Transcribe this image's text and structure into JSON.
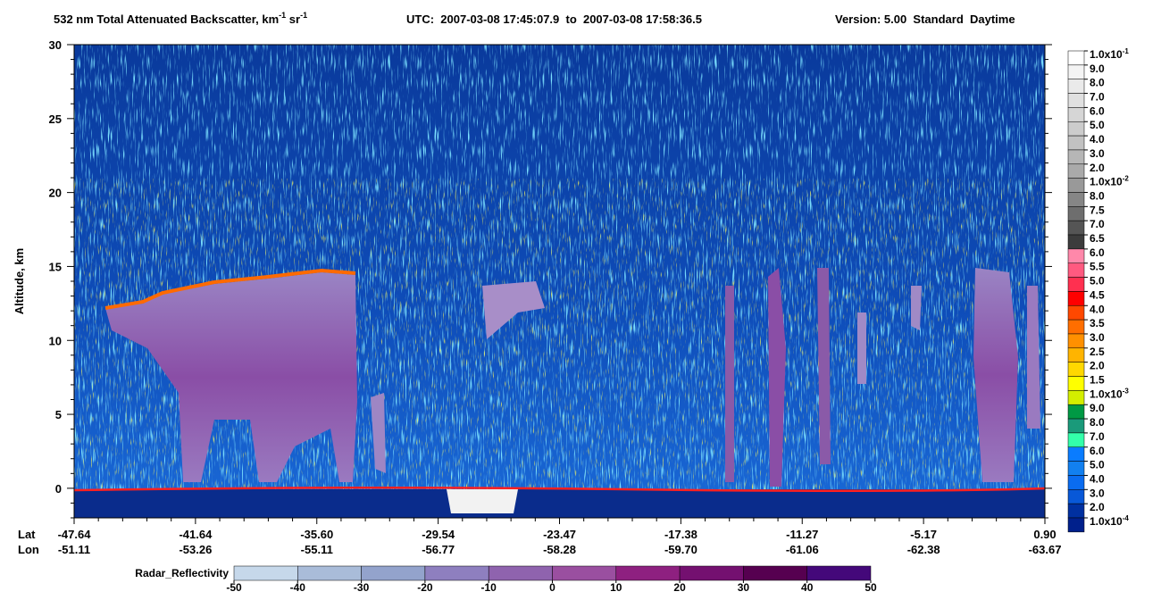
{
  "chart_data": {
    "type": "curtain",
    "title": [
      {
        "text": "532 nm Total Attenuated Backscatter, km",
        "sup": "-1"
      },
      {
        "text": " sr",
        "sup": "-1"
      }
    ],
    "subtitle": "UTC:  2007-03-08 17:45:07.9  to  2007-03-08 17:58:36.5",
    "version": "Version: 5.00  Standard  Daytime",
    "ylabel": "Altitude, km",
    "ylim": [
      -2,
      30
    ],
    "yticks": [
      0,
      5,
      10,
      15,
      20,
      25,
      30
    ],
    "x_rows": [
      {
        "name": "Lat",
        "labels": [
          "-47.64",
          "-41.64",
          "-35.60",
          "-29.54",
          "-23.47",
          "-17.38",
          "-11.27",
          "-5.17",
          "0.90"
        ]
      },
      {
        "name": "Lon",
        "labels": [
          "-51.11",
          "-53.26",
          "-55.11",
          "-56.77",
          "-58.28",
          "-59.70",
          "-61.06",
          "-62.38",
          "-63.67"
        ]
      }
    ],
    "colorbar": {
      "labels": [
        [
          "1.0x10",
          "-1"
        ],
        "9.0",
        "8.0",
        "7.0",
        "6.0",
        "5.0",
        "4.0",
        "3.0",
        "2.0",
        [
          "1.0x10",
          "-2"
        ],
        "8.0",
        "7.5",
        "7.0",
        "6.5",
        "6.0",
        "5.5",
        "5.0",
        "4.5",
        "4.0",
        "3.5",
        "3.0",
        "2.5",
        "2.0",
        "1.5",
        [
          "1.0x10",
          "-3"
        ],
        "9.0",
        "8.0",
        "7.0",
        "6.0",
        "5.0",
        "4.0",
        "3.0",
        "2.0",
        [
          "1.0x10",
          "-4"
        ]
      ],
      "colors": [
        "#ffffff",
        "#f4f4f4",
        "#eaeaea",
        "#e0e0e0",
        "#d6d6d6",
        "#cccccc",
        "#c2c2c2",
        "#b6b6b6",
        "#aaaaaa",
        "#999999",
        "#868686",
        "#6e6e6e",
        "#555555",
        "#3c3c3c",
        "#ff88aa",
        "#ff5a80",
        "#ff3050",
        "#ff0000",
        "#ff4800",
        "#ff6e00",
        "#ff9000",
        "#ffb400",
        "#ffd800",
        "#ffff00",
        "#d4ee00",
        "#009944",
        "#1a9a7a",
        "#33ffaa",
        "#0a7cff",
        "#1280f0",
        "#0a6cf0",
        "#0858d8",
        "#0030a0",
        "#00208c"
      ]
    },
    "radar_colorbar": {
      "name": "Radar_Reflectivity",
      "lim": [
        -50,
        50
      ],
      "ticks": [
        -50,
        -40,
        -30,
        -20,
        -10,
        0,
        10,
        20,
        30,
        40,
        50
      ],
      "colors": [
        "#c6d8ea",
        "#a9bcd9",
        "#93a3cc",
        "#8e7fbf",
        "#8f63ae",
        "#9a4fa0",
        "#8e2080",
        "#741070",
        "#560050",
        "#44087a"
      ]
    }
  }
}
